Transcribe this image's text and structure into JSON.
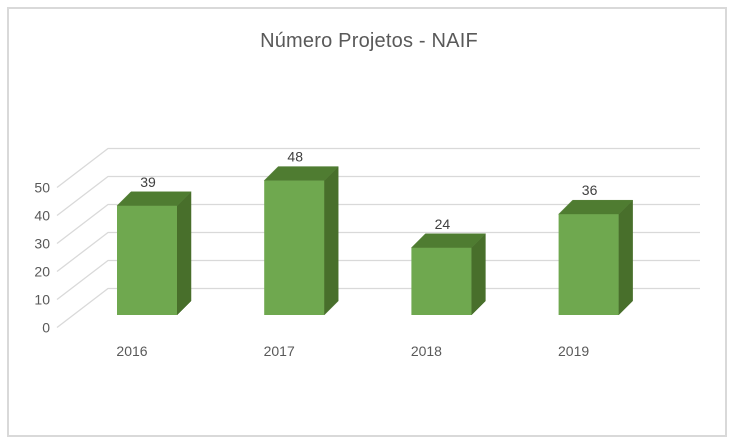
{
  "window": {
    "background": "#ffffff",
    "border_color": "#d9d9d9"
  },
  "chart_data": {
    "type": "bar",
    "variant": "3d-column",
    "title": "Número Projetos - NAIF",
    "categories": [
      "2016",
      "2017",
      "2018",
      "2019"
    ],
    "values": [
      39,
      48,
      24,
      36
    ],
    "series": [
      {
        "name": "Número Projetos",
        "values": [
          39,
          48,
          24,
          36
        ]
      }
    ],
    "data_labels": [
      "39",
      "48",
      "24",
      "36"
    ],
    "xlabel": "",
    "ylabel": "",
    "ylim": [
      0,
      50
    ],
    "ytick_step": 10,
    "yticks": [
      "0",
      "10",
      "20",
      "30",
      "40",
      "50"
    ],
    "grid": true,
    "legend": false,
    "colors": {
      "bar_front": "#6FA84F",
      "bar_top": "#4F7C31",
      "bar_side": "#486F2B",
      "gridline": "#D9D9D9",
      "axis_text": "#595959",
      "value_text": "#404040",
      "title_text": "#595959"
    }
  }
}
